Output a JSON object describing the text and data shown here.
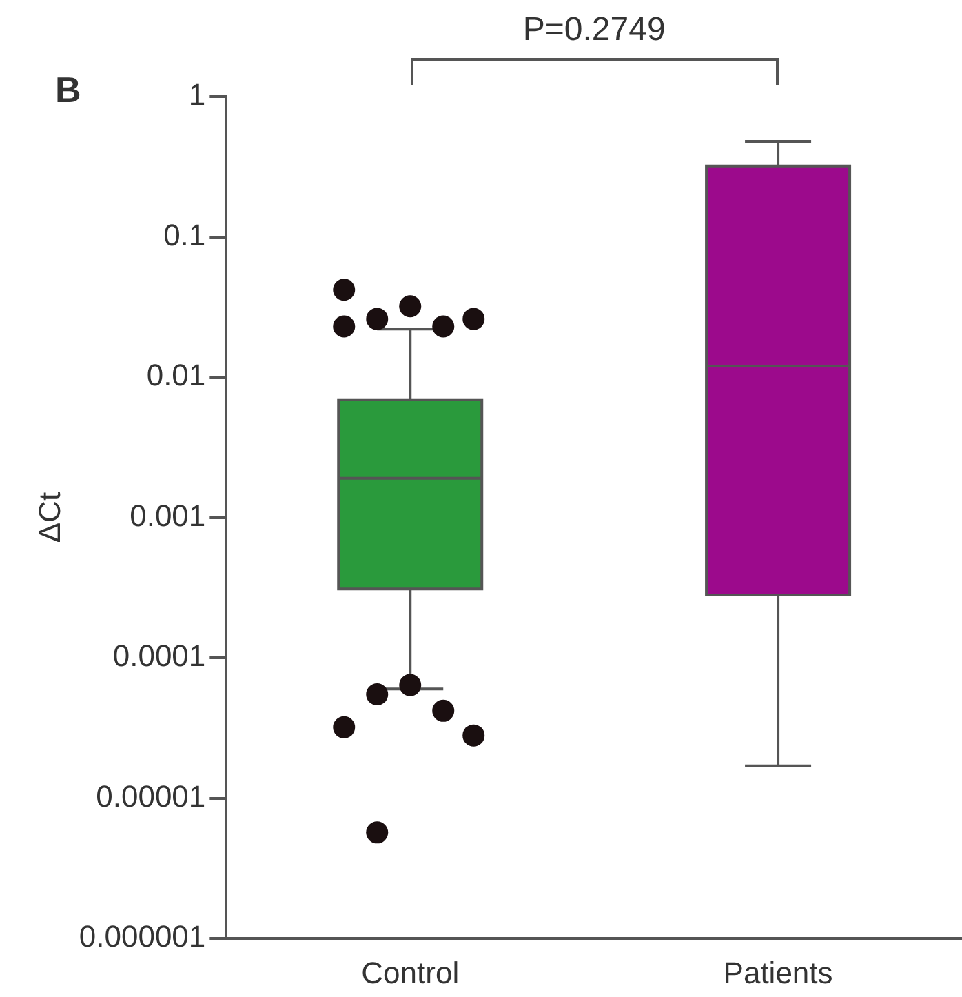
{
  "chart_data": {
    "type": "box",
    "ylabel": "ΔCt",
    "log": "y",
    "categories": [
      "Control",
      "Patients"
    ],
    "ylim": [
      1e-06,
      1
    ],
    "yticks": [
      {
        "value": 1e-06,
        "label": "0.000001"
      },
      {
        "value": 1e-05,
        "label": "0.00001"
      },
      {
        "value": 0.0001,
        "label": "0.0001"
      },
      {
        "value": 0.001,
        "label": "0.001"
      },
      {
        "value": 0.01,
        "label": "0.01"
      },
      {
        "value": 0.1,
        "label": "0.1"
      },
      {
        "value": 1,
        "label": "1"
      }
    ],
    "grid": false,
    "legend": false,
    "series": [
      {
        "colors": [
          "#2a9a3c",
          "#9c0a8c"
        ],
        "boxes": [
          {
            "low": 6e-05,
            "q1": 0.00031,
            "median": 0.0019,
            "q3": 0.0069,
            "high": 0.022,
            "outliers": [
              0.023,
              0.026,
              0.032,
              0.023,
              0.026,
              0.042,
              5.5e-05,
              6.4e-05,
              4.2e-05,
              2.8e-05,
              3.2e-05,
              5.7e-06
            ]
          },
          {
            "low": 1.7e-05,
            "q1": 0.00028,
            "median": 0.012,
            "q3": 0.32,
            "high": 0.48
          }
        ]
      }
    ],
    "annotations": [
      "B",
      "P=0.2749"
    ]
  }
}
